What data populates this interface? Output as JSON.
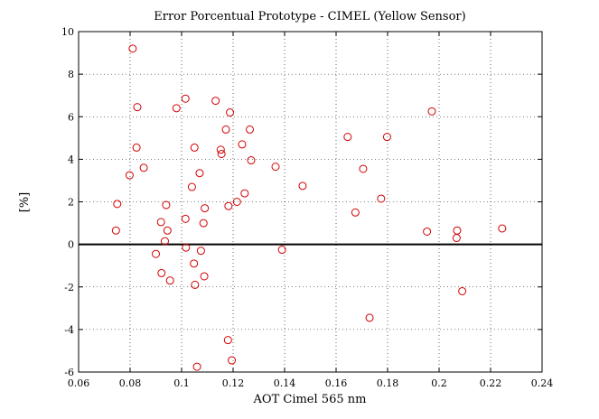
{
  "chart_data": {
    "type": "scatter",
    "title": "Error Porcentual Prototype - CIMEL (Yellow Sensor)",
    "xlabel": "AOT Cimel 565 nm",
    "ylabel": "[%]",
    "xlim": [
      0.06,
      0.24
    ],
    "ylim": [
      -6,
      10
    ],
    "xticks": [
      0.06,
      0.08,
      0.1,
      0.12,
      0.14,
      0.16,
      0.18,
      0.2,
      0.22,
      0.24
    ],
    "xtick_labels": [
      "0.06",
      "0.08",
      "0.1",
      "0.12",
      "0.14",
      "0.16",
      "0.18",
      "0.2",
      "0.22",
      "0.24"
    ],
    "yticks": [
      -6,
      -4,
      -2,
      0,
      2,
      4,
      6,
      8,
      10
    ],
    "ytick_labels": [
      "-6",
      "-4",
      "-2",
      "0",
      "2",
      "4",
      "6",
      "8",
      "10"
    ],
    "grid": true,
    "reference_line": {
      "y": 0,
      "color": "#000000"
    },
    "marker": "circle-open",
    "marker_color": "#d40000",
    "series": [
      {
        "points": [
          [
            0.0745,
            0.65
          ],
          [
            0.075,
            1.9
          ],
          [
            0.0798,
            3.25
          ],
          [
            0.081,
            9.2
          ],
          [
            0.0825,
            4.55
          ],
          [
            0.0828,
            6.45
          ],
          [
            0.0853,
            3.6
          ],
          [
            0.09,
            -0.45
          ],
          [
            0.092,
            1.05
          ],
          [
            0.0922,
            -1.35
          ],
          [
            0.0935,
            0.15
          ],
          [
            0.094,
            1.85
          ],
          [
            0.0945,
            0.65
          ],
          [
            0.0955,
            -1.7
          ],
          [
            0.098,
            6.4
          ],
          [
            0.1015,
            6.85
          ],
          [
            0.1015,
            1.2
          ],
          [
            0.1017,
            -0.15
          ],
          [
            0.104,
            2.7
          ],
          [
            0.1048,
            -0.9
          ],
          [
            0.105,
            4.55
          ],
          [
            0.1052,
            -1.9
          ],
          [
            0.106,
            -5.75
          ],
          [
            0.107,
            3.35
          ],
          [
            0.1075,
            -0.3
          ],
          [
            0.1085,
            1.0
          ],
          [
            0.1088,
            -1.5
          ],
          [
            0.109,
            1.7
          ],
          [
            0.1132,
            6.75
          ],
          [
            0.1152,
            4.45
          ],
          [
            0.1155,
            4.25
          ],
          [
            0.1172,
            5.4
          ],
          [
            0.118,
            -4.5
          ],
          [
            0.1182,
            1.8
          ],
          [
            0.1188,
            6.2
          ],
          [
            0.1195,
            -5.45
          ],
          [
            0.1215,
            2.0
          ],
          [
            0.1235,
            4.7
          ],
          [
            0.1245,
            2.4
          ],
          [
            0.1265,
            5.4
          ],
          [
            0.127,
            3.95
          ],
          [
            0.1365,
            3.65
          ],
          [
            0.139,
            -0.25
          ],
          [
            0.147,
            2.75
          ],
          [
            0.1645,
            5.05
          ],
          [
            0.1675,
            1.5
          ],
          [
            0.1705,
            3.55
          ],
          [
            0.173,
            -3.45
          ],
          [
            0.1775,
            2.15
          ],
          [
            0.1798,
            5.05
          ],
          [
            0.1953,
            0.6
          ],
          [
            0.1972,
            6.25
          ],
          [
            0.2068,
            0.3
          ],
          [
            0.207,
            0.65
          ],
          [
            0.209,
            -2.2
          ],
          [
            0.2245,
            0.75
          ]
        ]
      }
    ]
  }
}
